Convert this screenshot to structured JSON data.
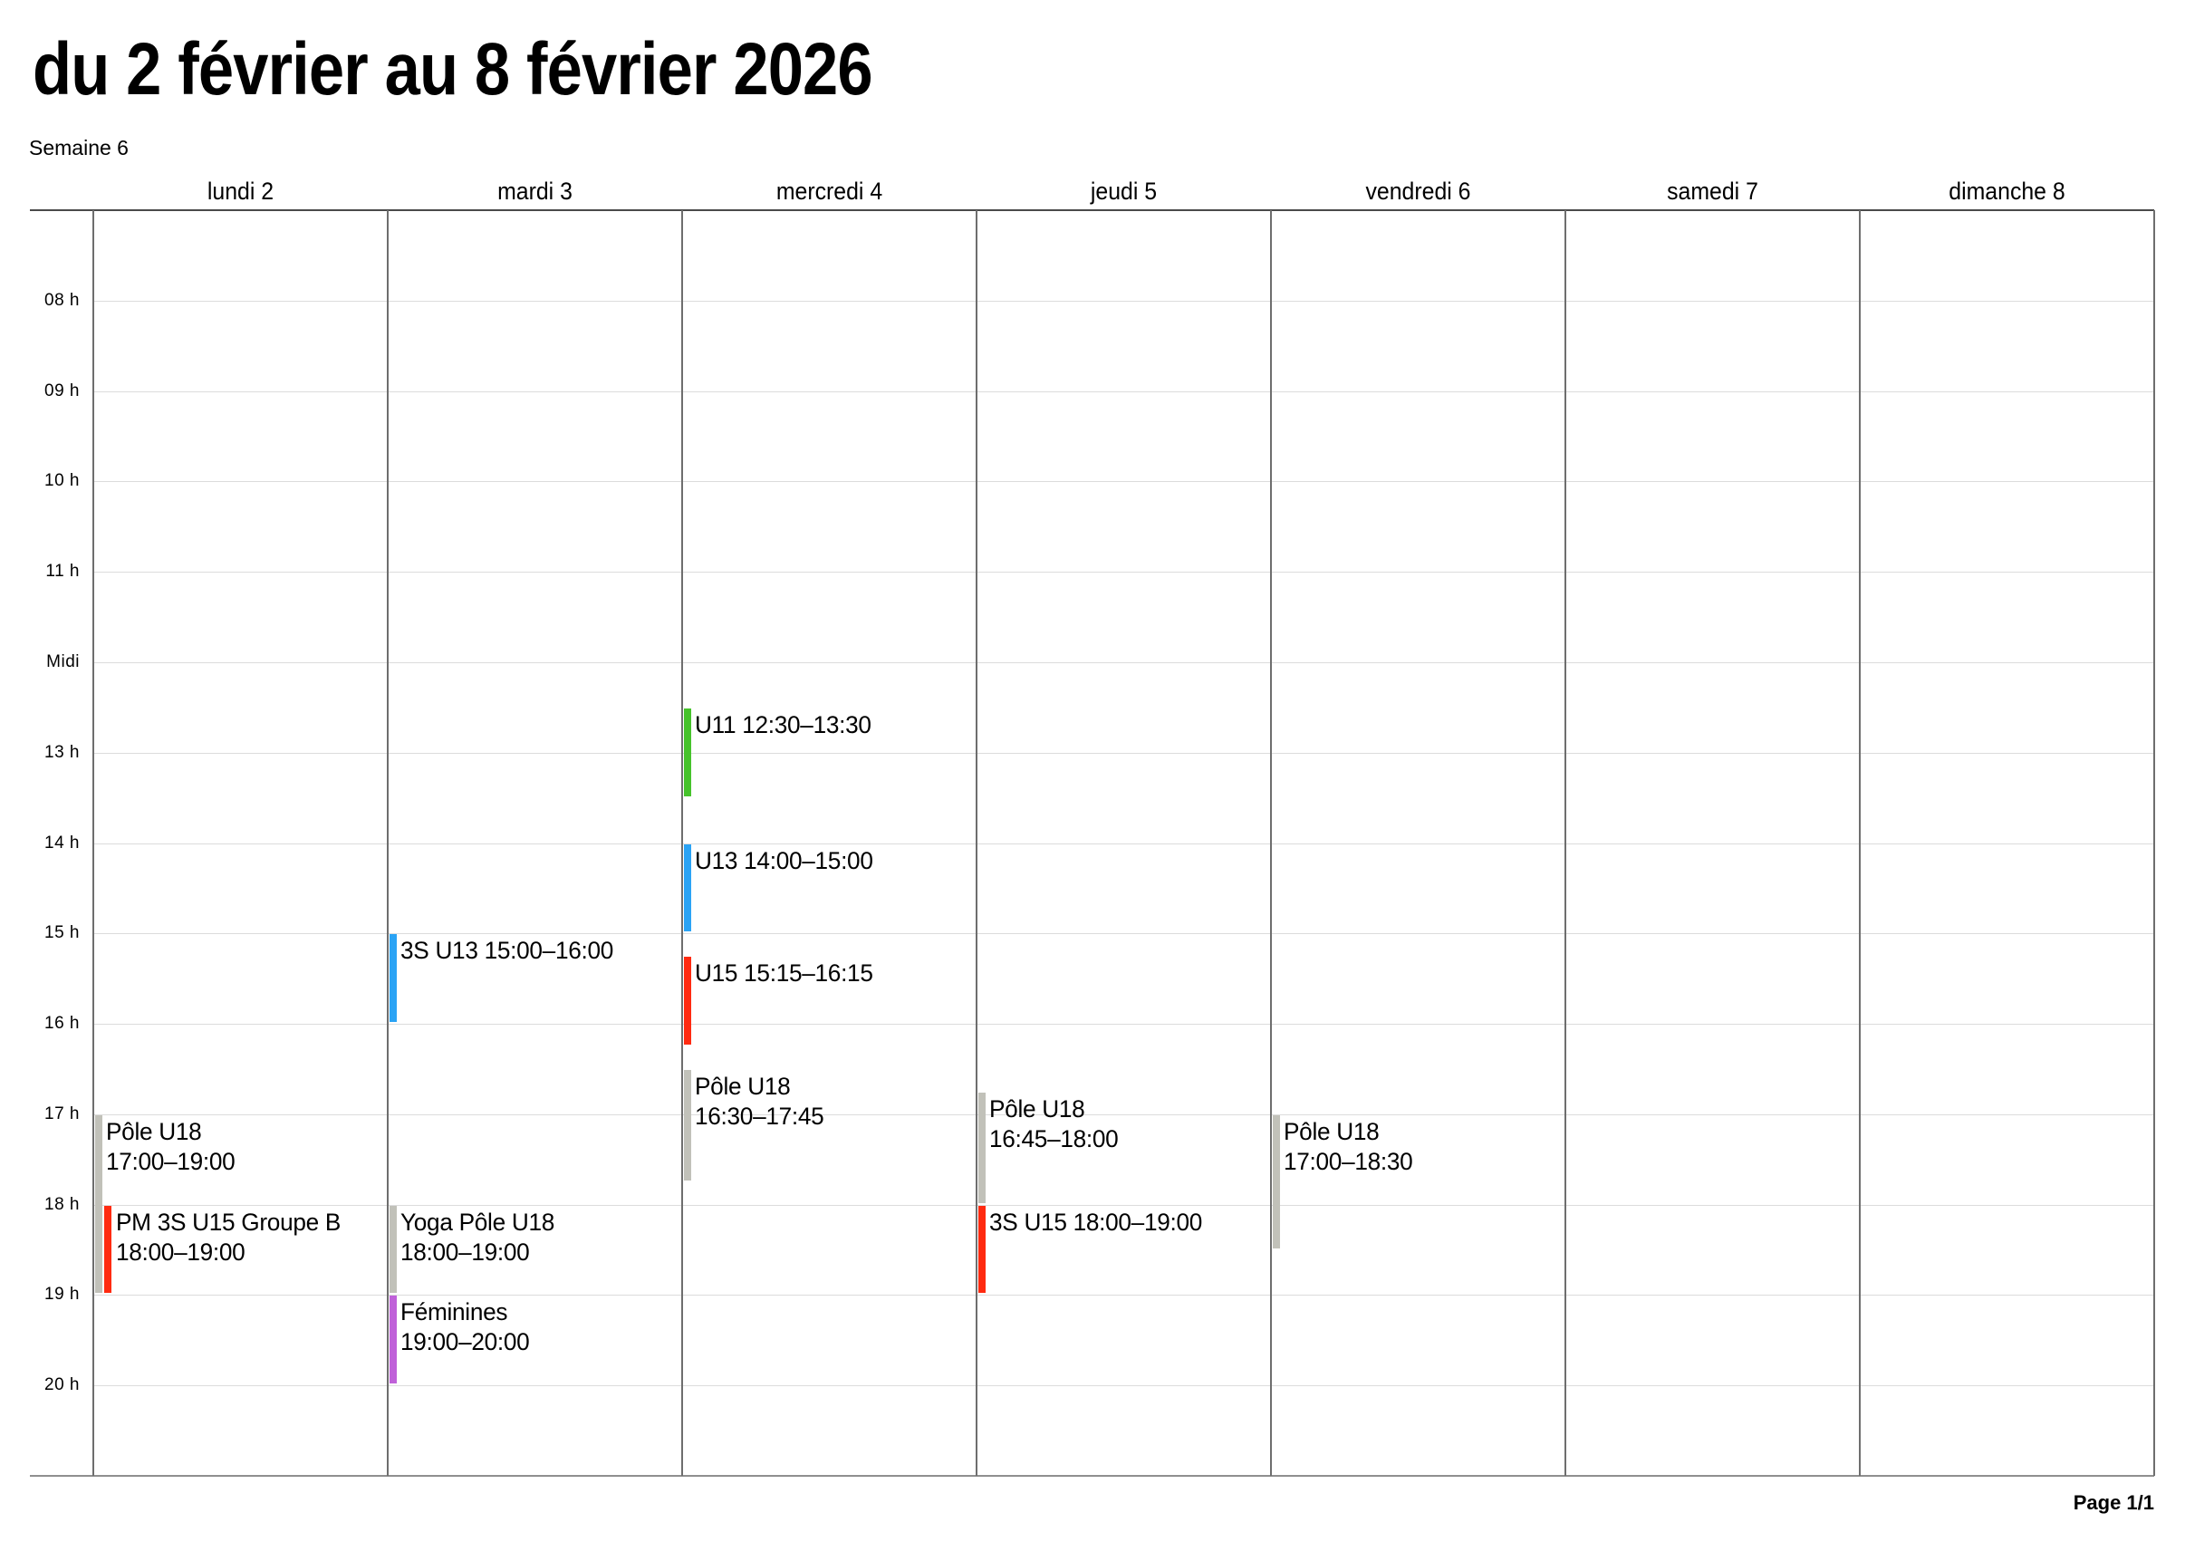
{
  "header": {
    "title": "du 2 février au 8 février 2026",
    "subtitle": "Semaine 6"
  },
  "footer": {
    "page_label": "Page 1/1"
  },
  "calendar": {
    "day_headers": [
      "lundi 2",
      "mardi 3",
      "mercredi 4",
      "jeudi 5",
      "vendredi 6",
      "samedi 7",
      "dimanche 8"
    ],
    "time_labels": [
      {
        "hour": 8,
        "label": "08 h"
      },
      {
        "hour": 9,
        "label": "09 h"
      },
      {
        "hour": 10,
        "label": "10 h"
      },
      {
        "hour": 11,
        "label": "11 h"
      },
      {
        "hour": 12,
        "label": "Midi"
      },
      {
        "hour": 13,
        "label": "13 h"
      },
      {
        "hour": 14,
        "label": "14 h"
      },
      {
        "hour": 15,
        "label": "15 h"
      },
      {
        "hour": 16,
        "label": "16 h"
      },
      {
        "hour": 17,
        "label": "17 h"
      },
      {
        "hour": 18,
        "label": "18 h"
      },
      {
        "hour": 19,
        "label": "19 h"
      },
      {
        "hour": 20,
        "label": "20 h"
      }
    ],
    "axis_start_hour": 7,
    "axis_end_hour": 21,
    "colors": {
      "gray": "#c1c1b9",
      "red": "#ff2a10",
      "blue": "#2aa3f5",
      "green": "#46c32b",
      "purple": "#c061d9"
    },
    "events": [
      {
        "day": 0,
        "title": "Pôle U18",
        "time": "17:00–19:00",
        "start": 17,
        "end": 19,
        "color": "gray",
        "indent": false,
        "single_line": false
      },
      {
        "day": 0,
        "title": "PM 3S U15 Groupe B",
        "time": "18:00–19:00",
        "start": 18,
        "end": 19,
        "color": "red",
        "indent": true,
        "single_line": false
      },
      {
        "day": 1,
        "title": "3S U13",
        "time": "15:00–16:00",
        "start": 15,
        "end": 16,
        "color": "blue",
        "indent": false,
        "single_line": true
      },
      {
        "day": 1,
        "title": "Yoga Pôle U18",
        "time": "18:00–19:00",
        "start": 18,
        "end": 19,
        "color": "gray",
        "indent": false,
        "single_line": false
      },
      {
        "day": 1,
        "title": "Féminines",
        "time": "19:00–20:00",
        "start": 19,
        "end": 20,
        "color": "purple",
        "indent": false,
        "single_line": false
      },
      {
        "day": 2,
        "title": "U11",
        "time": "12:30–13:30",
        "start": 12.5,
        "end": 13.5,
        "color": "green",
        "indent": false,
        "single_line": true
      },
      {
        "day": 2,
        "title": "U13",
        "time": "14:00–15:00",
        "start": 14,
        "end": 15,
        "color": "blue",
        "indent": false,
        "single_line": true
      },
      {
        "day": 2,
        "title": "U15",
        "time": "15:15–16:15",
        "start": 15.25,
        "end": 16.25,
        "color": "red",
        "indent": false,
        "single_line": true
      },
      {
        "day": 2,
        "title": "Pôle U18",
        "time": "16:30–17:45",
        "start": 16.5,
        "end": 17.75,
        "color": "gray",
        "indent": false,
        "single_line": false
      },
      {
        "day": 3,
        "title": "Pôle U18",
        "time": "16:45–18:00",
        "start": 16.75,
        "end": 18,
        "color": "gray",
        "indent": false,
        "single_line": false
      },
      {
        "day": 3,
        "title": "3S U15",
        "time": "18:00–19:00",
        "start": 18,
        "end": 19,
        "color": "red",
        "indent": false,
        "single_line": true
      },
      {
        "day": 4,
        "title": "Pôle U18",
        "time": "17:00–18:30",
        "start": 17,
        "end": 18.5,
        "color": "gray",
        "indent": false,
        "single_line": false
      }
    ]
  }
}
